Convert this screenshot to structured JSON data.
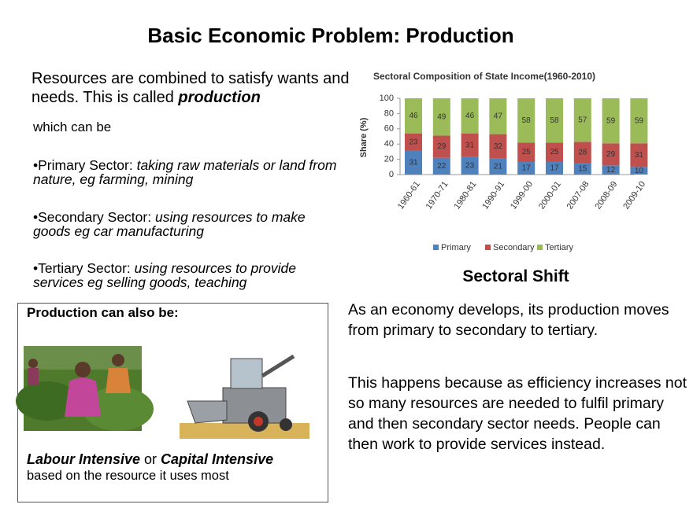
{
  "title": "Basic Economic Problem: Production",
  "intro": {
    "text": "Resources are combined to satisfy wants and needs.  This is called ",
    "emphasis": "production"
  },
  "intro_continued": "which can be",
  "sectors": [
    {
      "label": "•Primary Sector: ",
      "description": "taking raw materials or land from nature, eg farming, mining"
    },
    {
      "label": "•Secondary Sector: ",
      "description": "using resources to make goods eg car manufacturing"
    },
    {
      "label": "•Tertiary Sector: ",
      "description": "using resources to provide services eg selling goods, teaching"
    }
  ],
  "box": {
    "heading": "Production can also be:",
    "option_1": "Labour Intensive",
    "connector": " or ",
    "option_2": "Capital Intensive",
    "note": "based on the resource it uses most"
  },
  "chart_data": {
    "type": "bar",
    "stacked": true,
    "title": "Sectoral Composition of State Income(1960-2010)",
    "y_label": "Share (%)",
    "categories": [
      "1960-61",
      "1970-71",
      "1980-81",
      "1990-91",
      "1999-00",
      "2000-01",
      "2007-08",
      "2008-09",
      "2009-10"
    ],
    "series": [
      {
        "name": "Primary",
        "color": "#4f81bd",
        "values": [
          31,
          22,
          23,
          21,
          17,
          17,
          15,
          12,
          10
        ]
      },
      {
        "name": "Secondary",
        "color": "#c0504d",
        "values": [
          23,
          29,
          31,
          32,
          25,
          25,
          28,
          29,
          31
        ]
      },
      {
        "name": "Tertiary",
        "color": "#9bbb59",
        "values": [
          46,
          49,
          46,
          47,
          58,
          58,
          57,
          59,
          59
        ]
      }
    ],
    "ylim": [
      0,
      100
    ],
    "yticks": [
      0,
      20,
      40,
      60,
      80,
      100
    ],
    "legend": "bottom"
  },
  "section": {
    "heading": "Sectoral Shift",
    "paragraphs": [
      "As an economy develops, its production moves from primary to secondary to tertiary.",
      "This happens because as efficiency increases not so many resources are needed to fulfil primary and then secondary sector needs.  People can then work to provide services instead."
    ]
  }
}
